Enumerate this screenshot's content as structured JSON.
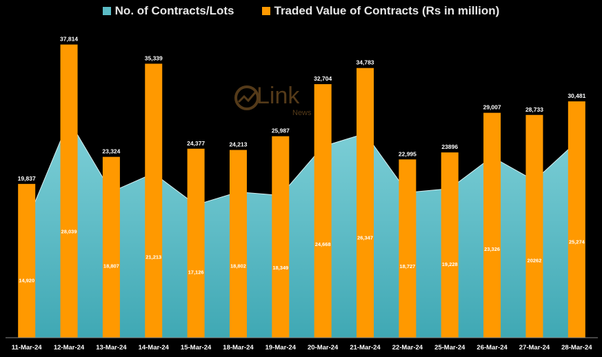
{
  "chart_data": {
    "type": "bar",
    "title": "",
    "xlabel": "",
    "ylabel": "",
    "ylim": [
      0,
      40000
    ],
    "grid": false,
    "legend_position": "top-center",
    "categories": [
      "11-Mar-24",
      "12-Mar-24",
      "13-Mar-24",
      "14-Mar-24",
      "15-Mar-24",
      "18-Mar-24",
      "19-Mar-24",
      "20-Mar-24",
      "21-Mar-24",
      "22-Mar-24",
      "25-Mar-24",
      "26-Mar-24",
      "27-Mar-24",
      "28-Mar-24"
    ],
    "series": [
      {
        "name": "No. of Contracts/Lots",
        "render": "area",
        "color": "#5bbcc6",
        "values": [
          14920,
          28039,
          18807,
          21213,
          17126,
          18802,
          18349,
          24668,
          26347,
          18727,
          19228,
          23326,
          20262,
          25274
        ],
        "labels": [
          "14,920",
          "28,039",
          "18,807",
          "21,213",
          "17,126",
          "18,802",
          "18,349",
          "24,668",
          "26,347",
          "18,727",
          "19,228",
          "23,326",
          "20262",
          "25,274"
        ]
      },
      {
        "name": "Traded Value of Contracts (Rs in million)",
        "render": "bar",
        "color": "#ff9900",
        "values": [
          19837,
          37814,
          23324,
          35339,
          24377,
          24213,
          25987,
          32704,
          34783,
          22995,
          23896,
          29007,
          28733,
          30481
        ],
        "labels": [
          "19,837",
          "37,814",
          "23,324",
          "35,339",
          "24,377",
          "24,213",
          "25,987",
          "32,704",
          "34,783",
          "22,995",
          "23896",
          "29,007",
          "28,733",
          "30,481"
        ]
      }
    ]
  },
  "watermark": {
    "text": "Link",
    "sub": "News",
    "color": "#9a6a2e"
  }
}
